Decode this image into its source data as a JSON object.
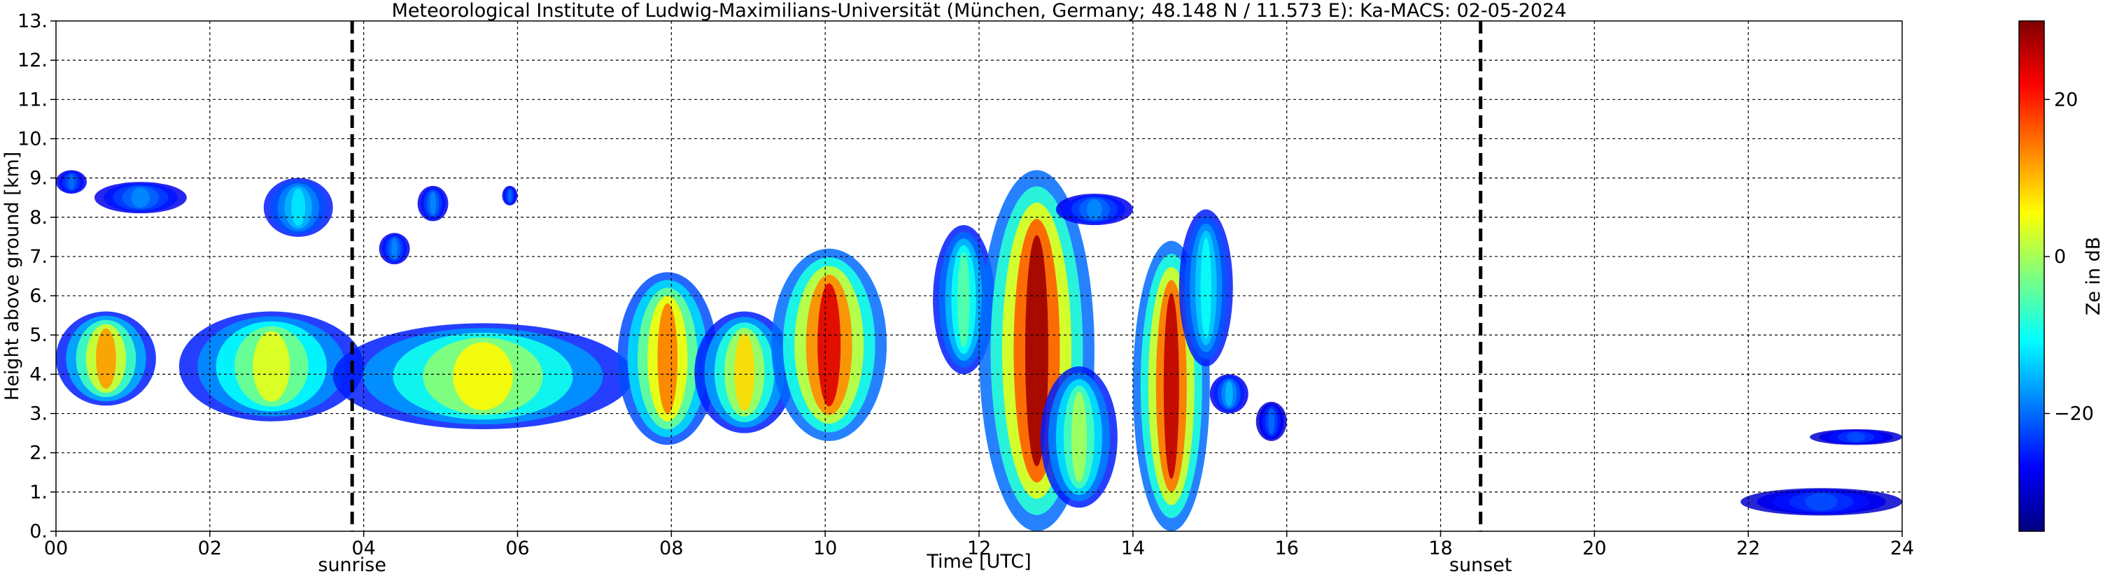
{
  "chart_data": {
    "type": "heatmap",
    "title": "Meteorological Institute of Ludwig-Maximilians-Universität (München, Germany; 48.148 N / 11.573 E):    Ka-MACS: 02-05-2024",
    "xlabel": "Time [UTC]",
    "ylabel": "Height above ground [km]",
    "xlim": [
      0,
      24
    ],
    "ylim": [
      0,
      13
    ],
    "grid": true,
    "x_ticks": [
      "00",
      "02",
      "04",
      "06",
      "08",
      "10",
      "12",
      "14",
      "16",
      "18",
      "20",
      "22",
      "24"
    ],
    "y_ticks": [
      "0.",
      "1.",
      "2.",
      "3.",
      "4.",
      "5.",
      "6.",
      "7.",
      "8.",
      "9.",
      "10.",
      "11.",
      "12.",
      "13."
    ],
    "colorbar": {
      "label": "Ze in dB",
      "range": [
        -35,
        30
      ],
      "ticks": [
        {
          "value": 20,
          "label": "20"
        },
        {
          "value": 0,
          "label": "0"
        },
        {
          "value": -20,
          "label": "−20"
        }
      ],
      "colormap": [
        "#00007f",
        "#0000ff",
        "#007fff",
        "#00ffff",
        "#7fff7f",
        "#ffff00",
        "#ff7f00",
        "#ff0000",
        "#7f0000"
      ]
    },
    "markers": [
      {
        "label": "sunrise",
        "time": 3.85
      },
      {
        "label": "sunset",
        "time": 18.52
      }
    ],
    "echoes": [
      {
        "t": [
          0.0,
          1.3
        ],
        "h": [
          3.2,
          5.6
        ],
        "core_dbz": 12,
        "edge_dbz": -25
      },
      {
        "t": [
          0.0,
          0.4
        ],
        "h": [
          8.6,
          9.2
        ],
        "core_dbz": -20,
        "edge_dbz": -28
      },
      {
        "t": [
          0.5,
          1.7
        ],
        "h": [
          8.1,
          8.9
        ],
        "core_dbz": -18,
        "edge_dbz": -28
      },
      {
        "t": [
          2.7,
          3.6
        ],
        "h": [
          7.5,
          9.0
        ],
        "core_dbz": -12,
        "edge_dbz": -25
      },
      {
        "t": [
          4.2,
          4.6
        ],
        "h": [
          6.8,
          7.6
        ],
        "core_dbz": -18,
        "edge_dbz": -28
      },
      {
        "t": [
          4.7,
          5.1
        ],
        "h": [
          7.9,
          8.8
        ],
        "core_dbz": -18,
        "edge_dbz": -28
      },
      {
        "t": [
          5.8,
          6.0
        ],
        "h": [
          8.3,
          8.8
        ],
        "core_dbz": -20,
        "edge_dbz": -28
      },
      {
        "t": [
          1.6,
          4.0
        ],
        "h": [
          2.8,
          5.6
        ],
        "core_dbz": 4,
        "edge_dbz": -25
      },
      {
        "t": [
          3.6,
          7.5
        ],
        "h": [
          2.6,
          5.3
        ],
        "core_dbz": 6,
        "edge_dbz": -25
      },
      {
        "t": [
          7.3,
          8.6
        ],
        "h": [
          2.2,
          6.6
        ],
        "core_dbz": 14,
        "edge_dbz": -22
      },
      {
        "t": [
          8.3,
          9.6
        ],
        "h": [
          2.5,
          5.6
        ],
        "core_dbz": 8,
        "edge_dbz": -25
      },
      {
        "t": [
          9.3,
          10.8
        ],
        "h": [
          2.3,
          7.2
        ],
        "core_dbz": 24,
        "edge_dbz": -20
      },
      {
        "t": [
          11.4,
          12.2
        ],
        "h": [
          4.0,
          7.8
        ],
        "core_dbz": -5,
        "edge_dbz": -25
      },
      {
        "t": [
          12.0,
          13.5
        ],
        "h": [
          0.0,
          9.2
        ],
        "core_dbz": 28,
        "edge_dbz": -20
      },
      {
        "t": [
          13.0,
          14.0
        ],
        "h": [
          7.8,
          8.6
        ],
        "core_dbz": -18,
        "edge_dbz": -28
      },
      {
        "t": [
          12.8,
          13.8
        ],
        "h": [
          0.6,
          4.2
        ],
        "core_dbz": 0,
        "edge_dbz": -25
      },
      {
        "t": [
          14.0,
          15.0
        ],
        "h": [
          0.0,
          7.4
        ],
        "core_dbz": 26,
        "edge_dbz": -20
      },
      {
        "t": [
          14.6,
          15.3
        ],
        "h": [
          4.2,
          8.2
        ],
        "core_dbz": -10,
        "edge_dbz": -25
      },
      {
        "t": [
          15.0,
          15.5
        ],
        "h": [
          3.0,
          4.0
        ],
        "core_dbz": -15,
        "edge_dbz": -28
      },
      {
        "t": [
          15.6,
          16.0
        ],
        "h": [
          2.3,
          3.3
        ],
        "core_dbz": -20,
        "edge_dbz": -30
      },
      {
        "t": [
          21.9,
          24.0
        ],
        "h": [
          0.4,
          1.1
        ],
        "core_dbz": -22,
        "edge_dbz": -30
      },
      {
        "t": [
          22.8,
          24.0
        ],
        "h": [
          2.2,
          2.6
        ],
        "core_dbz": -22,
        "edge_dbz": -30
      }
    ]
  }
}
